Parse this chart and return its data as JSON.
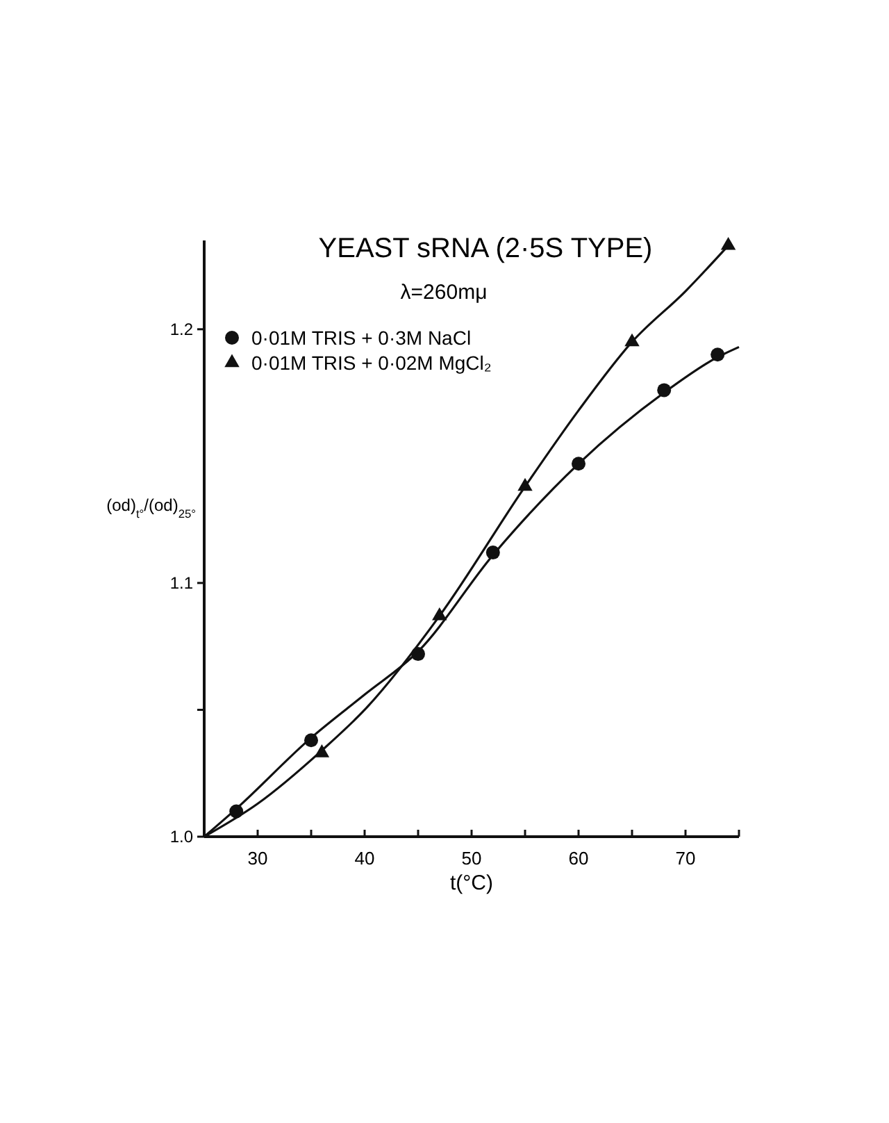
{
  "chart_data": {
    "type": "line",
    "title": "YEAST sRNA (2·5S TYPE)",
    "subtitle": "λ=260mμ",
    "xlabel": "t(°C)",
    "ylabel": "(od)$_{t°}$/(od)$_{25°}$",
    "xlim": [
      25,
      75
    ],
    "ylim": [
      1.0,
      1.235
    ],
    "xticks": [
      30,
      {
        "value": 35,
        "label": null
      },
      40,
      {
        "value": 45,
        "label": null
      },
      50,
      {
        "value": 55,
        "label": null
      },
      60,
      {
        "value": 65,
        "label": null
      },
      70,
      {
        "value": 75,
        "label": null
      }
    ],
    "yticks": [
      {
        "value": 1.0,
        "label": "1.0"
      },
      {
        "value": 1.05,
        "label": null
      },
      {
        "value": 1.1,
        "label": "1.1"
      },
      {
        "value": 1.2,
        "label": "1.2"
      }
    ],
    "grid": false,
    "legend": "top left",
    "series": [
      {
        "type": "scatter",
        "name": "0·01M TRIS + 0·3M NaCl",
        "color": "#111111",
        "marker": "circle",
        "x": [
          28,
          35,
          45,
          52,
          60,
          68,
          73
        ],
        "values": [
          1.01,
          1.038,
          1.072,
          1.112,
          1.147,
          1.176,
          1.19
        ]
      },
      {
        "type": "scatter",
        "name": "0·01M TRIS + 0·02M MgCl₂",
        "color": "#111111",
        "marker": "triangle",
        "x": [
          36,
          47,
          55,
          65,
          74
        ],
        "values": [
          1.033,
          1.087,
          1.138,
          1.195,
          1.233
        ]
      },
      {
        "type": "line",
        "color": "#111111",
        "marker": "none",
        "line_style": "solid",
        "x": [
          25,
          28,
          35,
          40,
          45,
          52,
          60,
          68,
          73,
          75
        ],
        "values": [
          1.0,
          1.011,
          1.039,
          1.056,
          1.073,
          1.111,
          1.147,
          1.175,
          1.189,
          1.193
        ]
      },
      {
        "type": "line",
        "color": "#111111",
        "marker": "none",
        "line_style": "solid",
        "x": [
          25,
          30,
          36,
          40,
          47,
          55,
          60,
          65,
          70,
          74
        ],
        "values": [
          1.0,
          1.013,
          1.034,
          1.05,
          1.087,
          1.138,
          1.168,
          1.195,
          1.215,
          1.233
        ]
      }
    ]
  }
}
